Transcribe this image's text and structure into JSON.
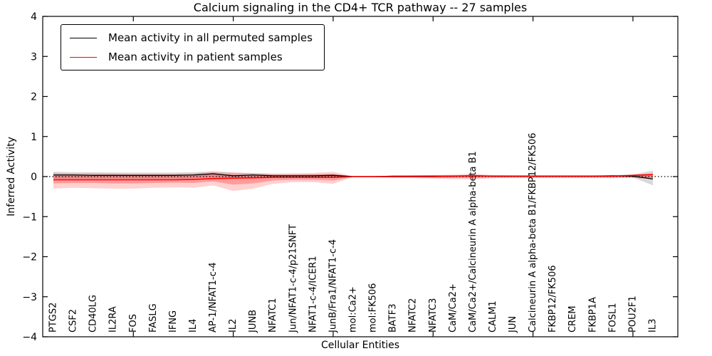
{
  "title": "Calcium signaling in the CD4+ TCR pathway -- 27 samples",
  "axes": {
    "xlabel": "Cellular Entities",
    "ylabel": "Inferred Activity"
  },
  "legend": {
    "items": [
      {
        "label": "Mean activity in all permuted samples",
        "color": "#000000"
      },
      {
        "label": "Mean activity in patient samples",
        "color": "#ff0000"
      }
    ]
  },
  "chart_data": {
    "type": "line",
    "title": "Calcium signaling in the CD4+ TCR pathway -- 27 samples",
    "xlabel": "Cellular Entities",
    "ylabel": "Inferred Activity",
    "ylim": [
      -4,
      4
    ],
    "yticks": [
      -4,
      -3,
      -2,
      -1,
      0,
      1,
      2,
      3,
      4
    ],
    "yticklabels": [
      "−4",
      "−3",
      "−2",
      "−1",
      "0",
      "1",
      "2",
      "3",
      "4"
    ],
    "xtick_mark_indices": [
      4,
      9,
      14,
      19,
      24,
      29
    ],
    "grid": false,
    "legend_position": "upper left",
    "zero_line": {
      "style": "dotted",
      "color": "#000000",
      "y": 0
    },
    "categories": [
      "PTGS2",
      "CSF2",
      "CD40LG",
      "IL2RA",
      "FOS",
      "FASLG",
      "IFNG",
      "IL4",
      "AP-1/NFAT1-c-4",
      "IL2",
      "JUNB",
      "NFATC1",
      "Jun/NFAT1-c-4/p21SNFT",
      "NFAT1-c-4/ICER1",
      "JunB/Fra1/NFAT1-c-4",
      "mol:Ca2+",
      "mol:FK506",
      "BATF3",
      "NFATC2",
      "NFATC3",
      "CaM/Ca2+",
      "CaM/Ca2+/Calcineurin A alpha-beta B1",
      "CALM1",
      "JUN",
      "Calcineurin A alpha-beta B1/FKBP12/FK506",
      "FKBP12/FK506",
      "CREM",
      "FKBP1A",
      "FOSL1",
      "POU2F1",
      "IL3"
    ],
    "series": [
      {
        "name": "Mean activity in all permuted samples",
        "color": "#000000",
        "values": [
          0.04,
          0.04,
          0.03,
          0.03,
          0.03,
          0.03,
          0.03,
          0.04,
          0.07,
          0.02,
          0.04,
          0.02,
          0.02,
          0.02,
          0.03,
          0.0,
          0.0,
          0.01,
          0.01,
          0.01,
          0.01,
          0.02,
          0.01,
          0.01,
          0.01,
          0.01,
          0.01,
          0.01,
          0.02,
          0.01,
          -0.06
        ]
      },
      {
        "name": "Mean activity in patient samples",
        "color": "#ff0000",
        "values": [
          -0.08,
          -0.08,
          -0.08,
          -0.08,
          -0.08,
          -0.08,
          -0.08,
          -0.07,
          -0.05,
          -0.04,
          -0.03,
          -0.02,
          -0.02,
          -0.02,
          -0.02,
          0.0,
          0.0,
          0.0,
          0.0,
          0.0,
          0.01,
          0.02,
          0.01,
          0.01,
          0.01,
          0.01,
          0.01,
          0.01,
          0.01,
          0.03,
          0.05
        ]
      }
    ],
    "bands": [
      {
        "name": "permuted-samples-std",
        "color": "rgba(128,128,128,0.30)",
        "upper": [
          0.12,
          0.11,
          0.11,
          0.1,
          0.1,
          0.1,
          0.1,
          0.11,
          0.13,
          0.1,
          0.09,
          0.07,
          0.06,
          0.06,
          0.07,
          0.01,
          0.01,
          0.02,
          0.02,
          0.03,
          0.03,
          0.04,
          0.03,
          0.03,
          0.03,
          0.03,
          0.03,
          0.03,
          0.04,
          0.05,
          0.15
        ],
        "lower": [
          -0.05,
          -0.05,
          -0.05,
          -0.05,
          -0.05,
          -0.05,
          -0.05,
          -0.04,
          -0.02,
          -0.05,
          -0.04,
          -0.03,
          -0.03,
          -0.03,
          -0.02,
          -0.01,
          -0.01,
          -0.01,
          -0.01,
          -0.01,
          -0.01,
          -0.01,
          -0.01,
          -0.01,
          -0.01,
          -0.01,
          -0.01,
          -0.01,
          -0.01,
          -0.02,
          -0.22
        ]
      },
      {
        "name": "patient-samples-std-outer",
        "color": "rgba(255,0,0,0.18)",
        "upper": [
          0.09,
          0.08,
          0.08,
          0.08,
          0.07,
          0.07,
          0.07,
          0.08,
          0.12,
          0.1,
          0.08,
          0.07,
          0.08,
          0.09,
          0.12,
          0.01,
          0.01,
          0.02,
          0.03,
          0.04,
          0.05,
          0.07,
          0.04,
          0.03,
          0.03,
          0.03,
          0.03,
          0.03,
          0.03,
          0.05,
          0.08
        ],
        "lower": [
          -0.3,
          -0.28,
          -0.29,
          -0.3,
          -0.3,
          -0.28,
          -0.27,
          -0.28,
          -0.22,
          -0.36,
          -0.3,
          -0.18,
          -0.14,
          -0.14,
          -0.18,
          -0.01,
          -0.02,
          -0.03,
          -0.04,
          -0.05,
          -0.06,
          -0.07,
          -0.04,
          -0.03,
          -0.03,
          -0.03,
          -0.03,
          -0.03,
          -0.03,
          -0.04,
          -0.05
        ]
      },
      {
        "name": "patient-samples-std-inner",
        "color": "rgba(255,0,0,0.25)",
        "upper": [
          0.04,
          0.04,
          0.04,
          0.04,
          0.03,
          0.03,
          0.03,
          0.04,
          0.06,
          0.05,
          0.04,
          0.03,
          0.04,
          0.05,
          0.06,
          0.0,
          0.0,
          0.01,
          0.02,
          0.02,
          0.03,
          0.04,
          0.02,
          0.02,
          0.02,
          0.02,
          0.02,
          0.02,
          0.02,
          0.03,
          0.04
        ],
        "lower": [
          -0.17,
          -0.16,
          -0.16,
          -0.17,
          -0.17,
          -0.16,
          -0.15,
          -0.16,
          -0.12,
          -0.2,
          -0.17,
          -0.1,
          -0.08,
          -0.08,
          -0.1,
          -0.01,
          -0.01,
          -0.02,
          -0.02,
          -0.03,
          -0.03,
          -0.04,
          -0.02,
          -0.02,
          -0.02,
          -0.02,
          -0.02,
          -0.02,
          -0.02,
          -0.02,
          -0.03
        ]
      }
    ]
  }
}
